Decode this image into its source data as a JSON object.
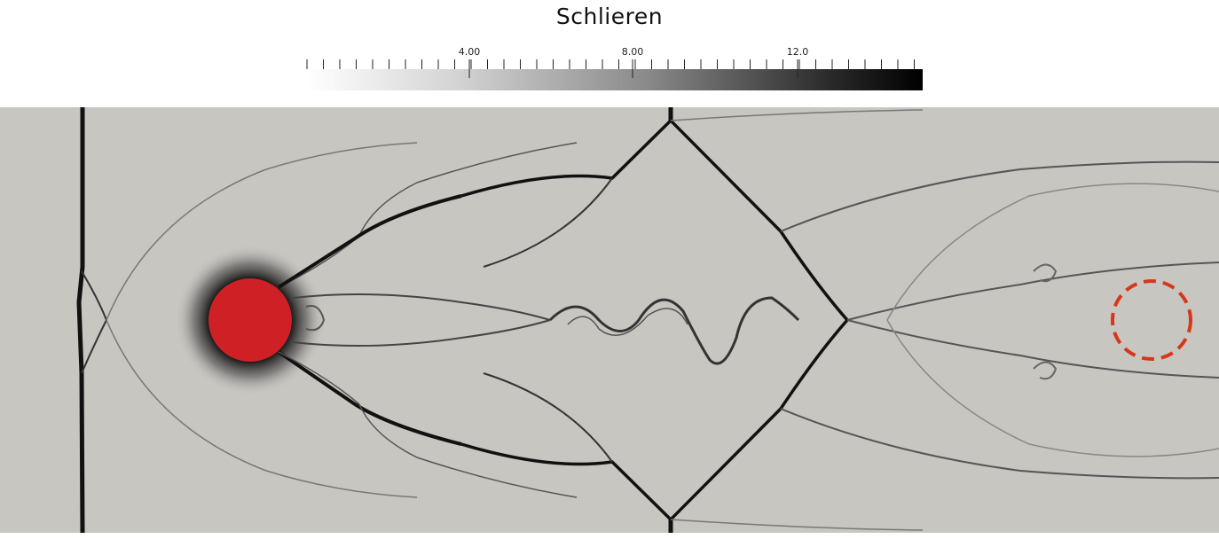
{
  "legend": {
    "title": "Schlieren",
    "tick_labels": [
      "4.00",
      "8.00",
      "12.0"
    ],
    "colormap": [
      "#ffffff",
      "#000000"
    ]
  },
  "scene": {
    "background_color": "#c8c6c0",
    "shock_color": "#111111",
    "cylinder_color": "#cf2026",
    "highlight_circle_color": "#d6371a"
  }
}
